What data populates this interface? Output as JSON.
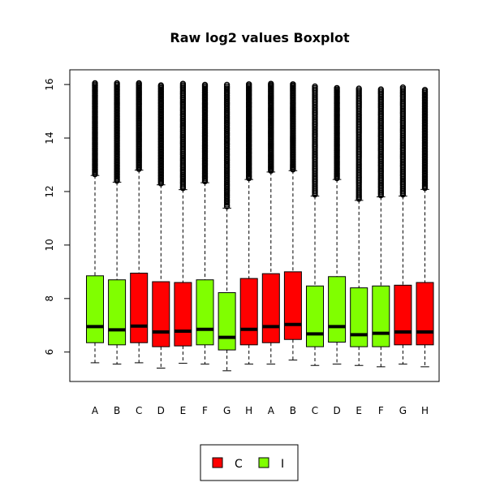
{
  "chart_data": {
    "type": "boxplot",
    "title": "Raw log2 values Boxplot",
    "xlabel": "",
    "ylabel": "",
    "ylim": [
      4.9,
      16.55
    ],
    "y_ticks": [
      6,
      8,
      10,
      12,
      14,
      16
    ],
    "grid": false,
    "legend_position": "bottom",
    "legend": [
      {
        "label": "C",
        "color": "#ff0000"
      },
      {
        "label": "I",
        "color": "#80ff00"
      }
    ],
    "boxes": [
      {
        "label": "A",
        "group": "I",
        "min": 5.6,
        "q1": 6.35,
        "median": 6.95,
        "q3": 8.85,
        "whisker_high": 12.6,
        "outlier_max": 16.05
      },
      {
        "label": "B",
        "group": "I",
        "min": 5.55,
        "q1": 6.27,
        "median": 6.83,
        "q3": 8.7,
        "whisker_high": 12.35,
        "outlier_max": 16.05
      },
      {
        "label": "C",
        "group": "C",
        "min": 5.6,
        "q1": 6.35,
        "median": 6.97,
        "q3": 8.95,
        "whisker_high": 12.8,
        "outlier_max": 16.05
      },
      {
        "label": "D",
        "group": "C",
        "min": 5.4,
        "q1": 6.2,
        "median": 6.75,
        "q3": 8.63,
        "whisker_high": 12.25,
        "outlier_max": 15.97
      },
      {
        "label": "E",
        "group": "C",
        "min": 5.58,
        "q1": 6.23,
        "median": 6.78,
        "q3": 8.6,
        "whisker_high": 12.07,
        "outlier_max": 16.03
      },
      {
        "label": "F",
        "group": "I",
        "min": 5.55,
        "q1": 6.27,
        "median": 6.85,
        "q3": 8.7,
        "whisker_high": 12.33,
        "outlier_max": 15.99
      },
      {
        "label": "G",
        "group": "I",
        "min": 5.3,
        "q1": 6.08,
        "median": 6.55,
        "q3": 8.22,
        "whisker_high": 11.38,
        "outlier_max": 15.99
      },
      {
        "label": "H",
        "group": "C",
        "min": 5.55,
        "q1": 6.27,
        "median": 6.85,
        "q3": 8.75,
        "whisker_high": 12.45,
        "outlier_max": 16.01
      },
      {
        "label": "A",
        "group": "C",
        "min": 5.55,
        "q1": 6.35,
        "median": 6.95,
        "q3": 8.93,
        "whisker_high": 12.73,
        "outlier_max": 16.03
      },
      {
        "label": "B",
        "group": "C",
        "min": 5.7,
        "q1": 6.47,
        "median": 7.03,
        "q3": 9.0,
        "whisker_high": 12.78,
        "outlier_max": 16.01
      },
      {
        "label": "C",
        "group": "I",
        "min": 5.5,
        "q1": 6.2,
        "median": 6.68,
        "q3": 8.47,
        "whisker_high": 11.83,
        "outlier_max": 15.93
      },
      {
        "label": "D",
        "group": "I",
        "min": 5.55,
        "q1": 6.37,
        "median": 6.95,
        "q3": 8.82,
        "whisker_high": 12.45,
        "outlier_max": 15.87
      },
      {
        "label": "E",
        "group": "I",
        "min": 5.5,
        "q1": 6.2,
        "median": 6.65,
        "q3": 8.4,
        "whisker_high": 11.67,
        "outlier_max": 15.85
      },
      {
        "label": "F",
        "group": "I",
        "min": 5.45,
        "q1": 6.2,
        "median": 6.7,
        "q3": 8.47,
        "whisker_high": 11.8,
        "outlier_max": 15.82
      },
      {
        "label": "G",
        "group": "C",
        "min": 5.55,
        "q1": 6.27,
        "median": 6.75,
        "q3": 8.5,
        "whisker_high": 11.83,
        "outlier_max": 15.89
      },
      {
        "label": "H",
        "group": "C",
        "min": 5.45,
        "q1": 6.27,
        "median": 6.75,
        "q3": 8.6,
        "whisker_high": 12.08,
        "outlier_max": 15.8
      }
    ]
  }
}
